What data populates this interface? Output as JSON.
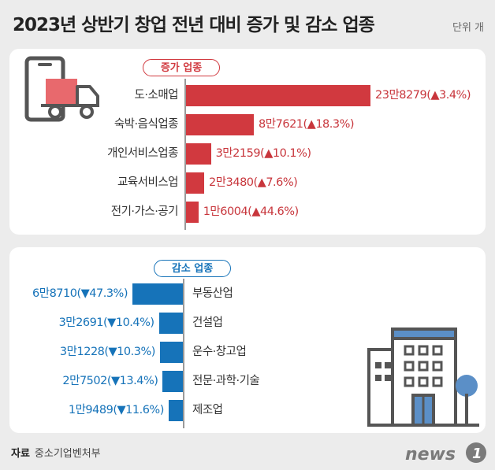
{
  "title": "2023년 상반기 창업 전년 대비 증가 및 감소 업종",
  "unit": "단위 개",
  "source_label": "자료",
  "source": "중소기업벤처부",
  "logo_text": "news1",
  "icons": [
    "phone-delivery-truck-icon",
    "office-building-icon"
  ],
  "colors": {
    "increase": "#d1393f",
    "decrease": "#1673b9",
    "background": "#ececec"
  },
  "chart_data": [
    {
      "type": "bar",
      "orientation": "horizontal",
      "title": "증가 업종",
      "categories": [
        "도·소매업",
        "숙박·음식업종",
        "개인서비스업종",
        "교육서비스업",
        "전기·가스·공기"
      ],
      "values": [
        238279,
        87621,
        32159,
        23480,
        16004
      ],
      "labels": [
        "23만8279(▲3.4%)",
        "8만7621(▲18.3%)",
        "3만2159(▲10.1%)",
        "2만3480(▲7.6%)",
        "1만6004(▲44.6%)"
      ]
    },
    {
      "type": "bar",
      "orientation": "horizontal",
      "title": "감소 업종",
      "categories": [
        "부동산업",
        "건설업",
        "운수·창고업",
        "전문·과학·기술",
        "제조업"
      ],
      "values": [
        68710,
        32691,
        31228,
        27502,
        19489
      ],
      "labels": [
        "6만8710(▼47.3%)",
        "3만2691(▼10.4%)",
        "3만1228(▼10.3%)",
        "2만7502(▼13.4%)",
        "1만9489(▼11.6%)"
      ]
    }
  ]
}
